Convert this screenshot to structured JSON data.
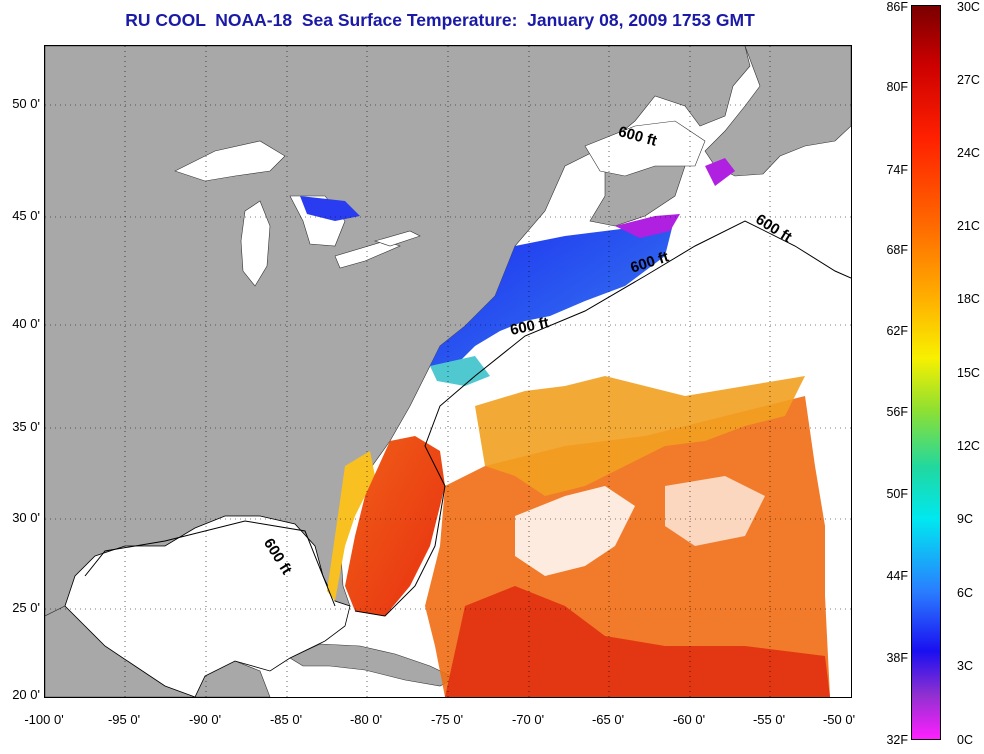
{
  "title": "RU COOL  NOAA-18  Sea Surface Temperature:  January 08, 2009 1753 GMT",
  "lat_labels": [
    "50 0'",
    "45 0'",
    "40 0'",
    "35 0'",
    "30 0'",
    "25 0'",
    "20 0'"
  ],
  "lon_labels": [
    "-100 0'",
    "-95 0'",
    "-90 0'",
    "-85 0'",
    "-80 0'",
    "-75 0'",
    "-70 0'",
    "-65 0'",
    "-60 0'",
    "-55 0'",
    "-50 0'"
  ],
  "contour_label": "600 ft",
  "colorbar": {
    "fahrenheit": [
      "86F",
      "80F",
      "74F",
      "68F",
      "62F",
      "56F",
      "50F",
      "44F",
      "38F",
      "32F"
    ],
    "celsius": [
      "30C",
      "27C",
      "24C",
      "21C",
      "18C",
      "15C",
      "12C",
      "9C",
      "6C",
      "3C",
      "0C"
    ]
  },
  "colors": {
    "land": "#a8a8a8",
    "ocean_no_data": "#ffffff",
    "title": "#1a1aa6",
    "warm": "#f04a10",
    "mid": "#f2a020",
    "cold": "#2a3cf0",
    "ice": "#b020e0"
  }
}
